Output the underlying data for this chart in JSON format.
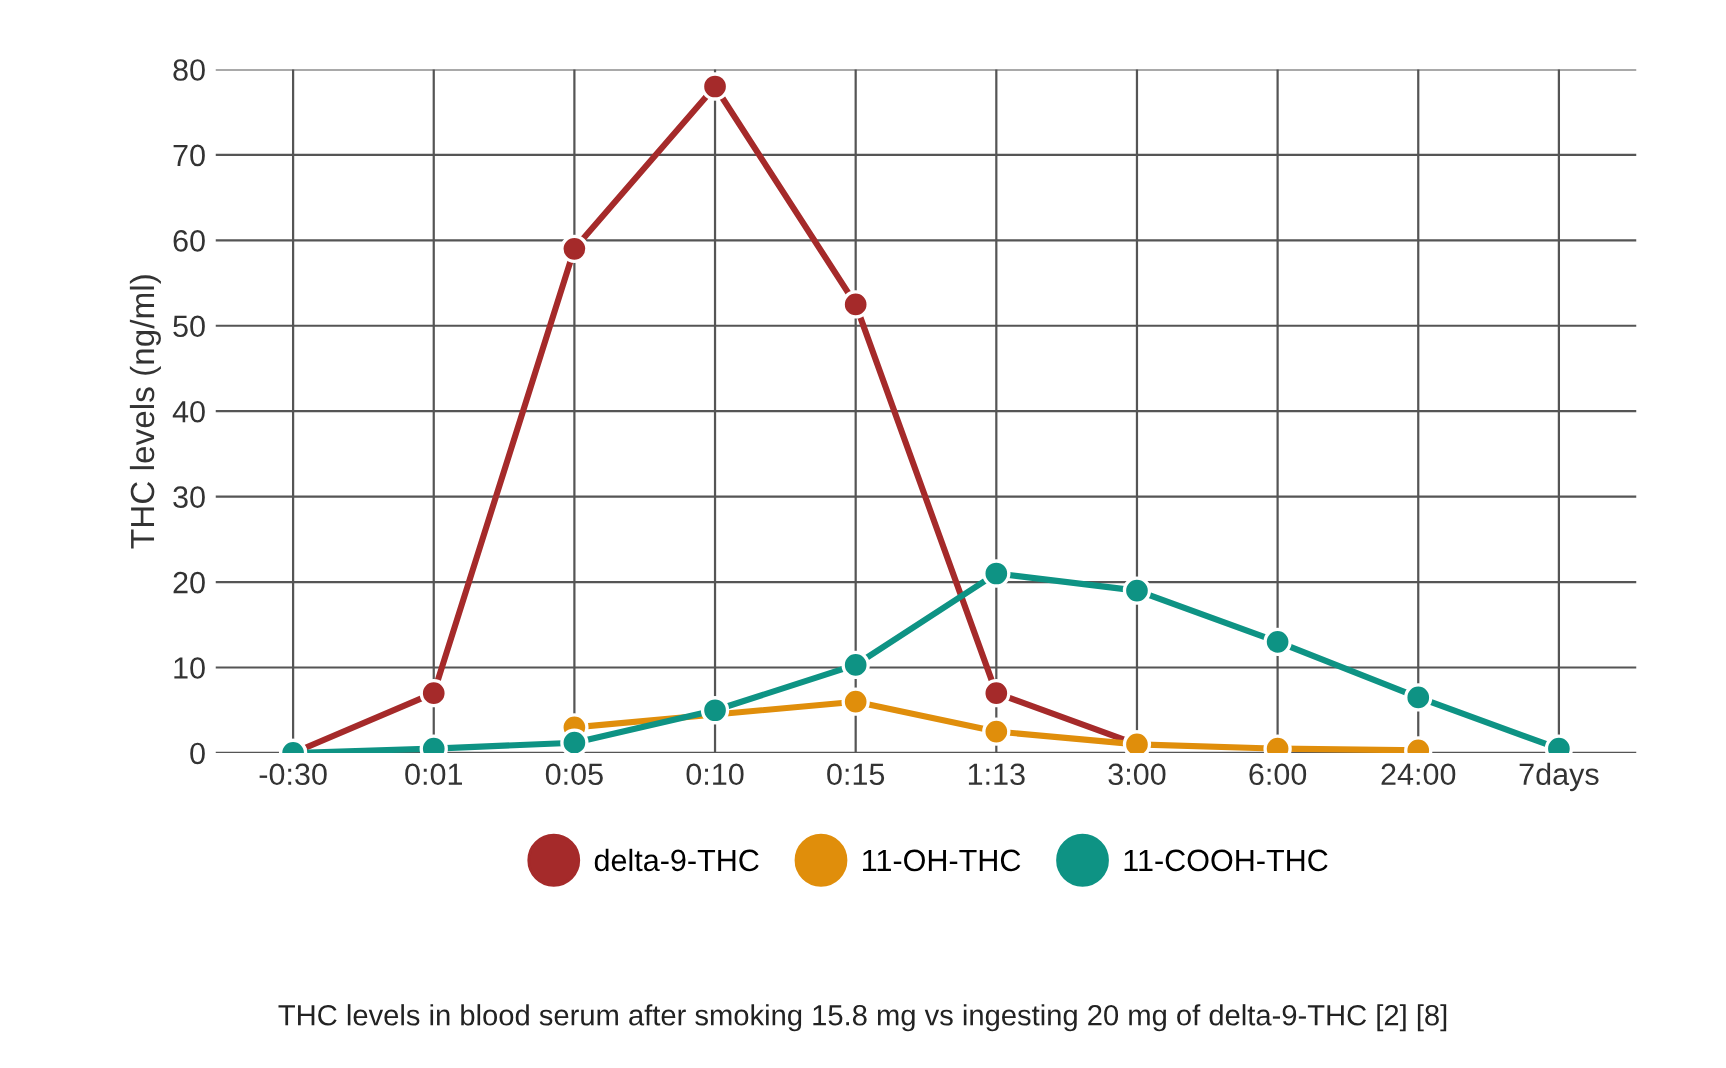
{
  "chart_data": {
    "type": "line",
    "ylabel": "THC levels (ng/ml)",
    "categories": [
      "-0:30",
      "0:01",
      "0:05",
      "0:10",
      "0:15",
      "1:13",
      "3:00",
      "6:00",
      "24:00",
      "7days"
    ],
    "series": [
      {
        "name": "delta-9-THC",
        "color": "#a52a2a",
        "values": [
          0,
          7,
          59,
          78,
          52.5,
          7,
          1,
          null,
          null,
          null
        ]
      },
      {
        "name": "11-OH-THC",
        "color": "#e08e0b",
        "values": [
          null,
          null,
          3,
          null,
          6,
          2.5,
          1,
          0.5,
          0.3,
          null
        ]
      },
      {
        "name": "11-COOH-THC",
        "color": "#0e9384",
        "values": [
          0,
          0.5,
          1.2,
          5,
          10.3,
          21,
          19,
          13,
          6.5,
          0.5
        ]
      }
    ],
    "ylim": [
      0,
      80
    ],
    "yticks": [
      0,
      10,
      20,
      30,
      40,
      50,
      60,
      70,
      80
    ],
    "grid": true,
    "legend": "bottom",
    "marker": "circle",
    "line_style": "solid",
    "annotations": [
      "THC levels in blood serum after smoking 15.8 mg vs ingesting 20 mg of delta-9-THC [2] [8]"
    ]
  }
}
